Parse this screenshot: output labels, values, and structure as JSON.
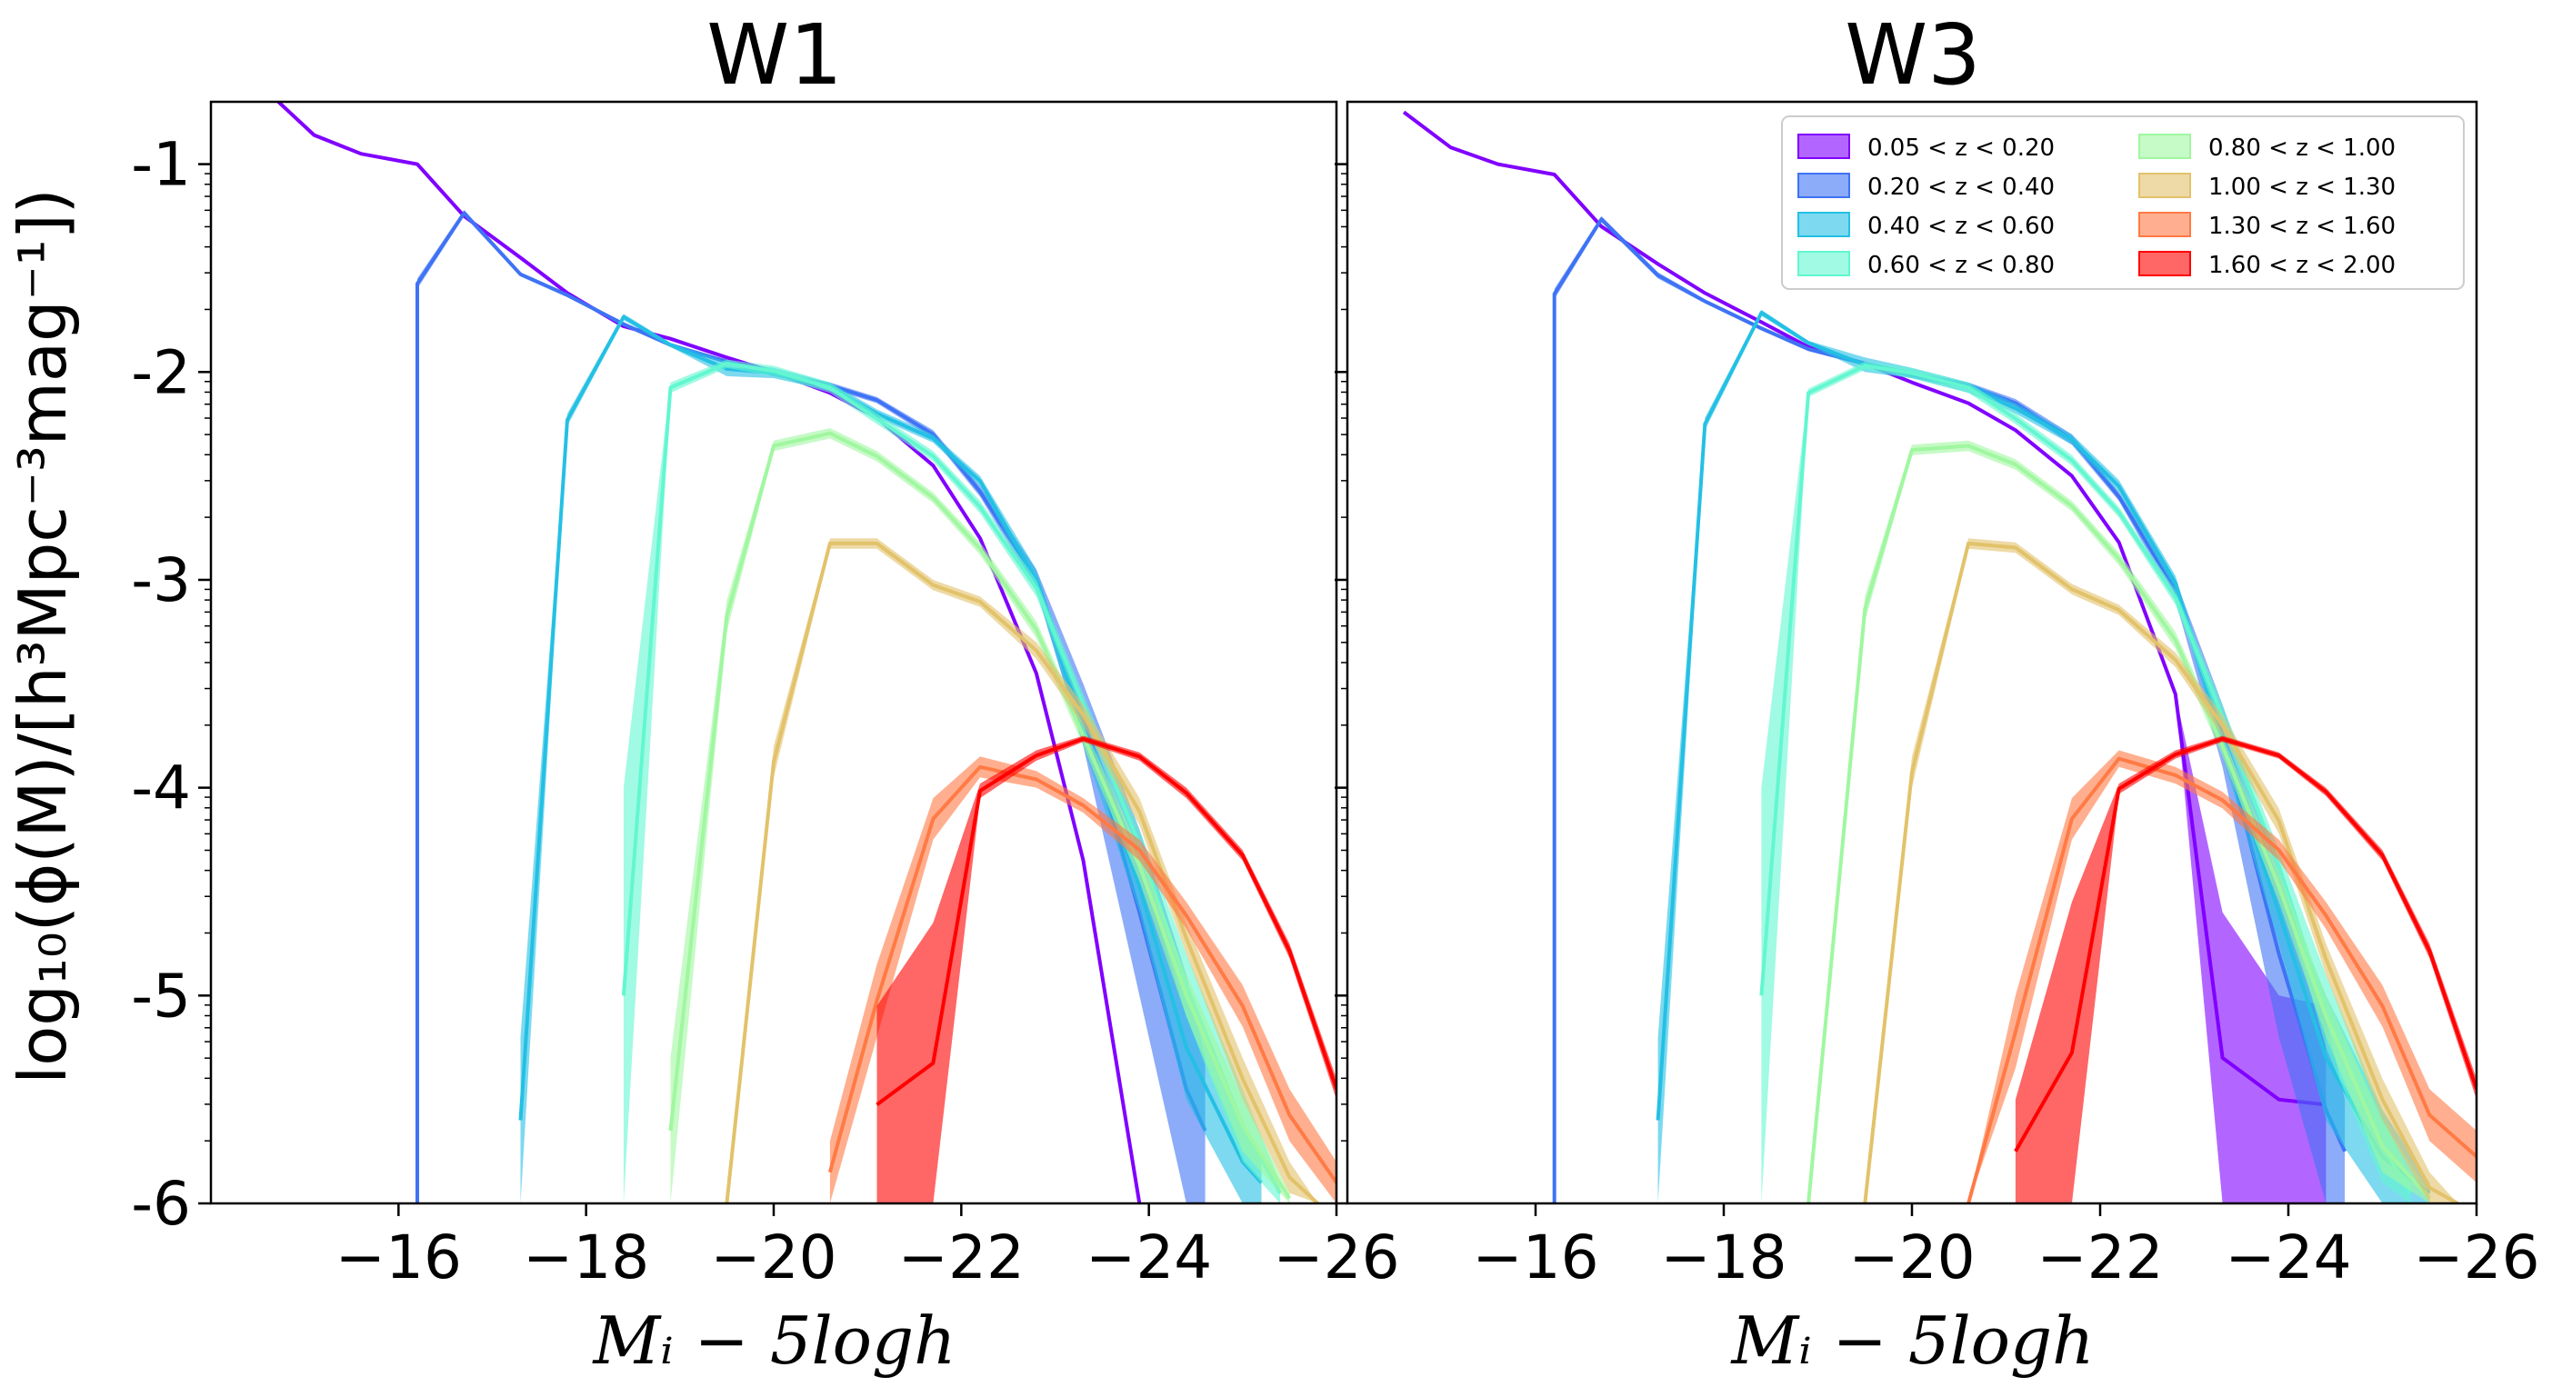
{
  "chart_data": {
    "type": "area",
    "shared": {
      "xlabel": "Mᵢ − 5logh",
      "ylabel": "log₁₀(ϕ(M)/[h³Mpc⁻³mag⁻¹])",
      "xlim": [
        -14,
        -26
      ],
      "ylim": [
        -6,
        -0.7
      ],
      "xticks": [
        -16,
        -18,
        -20,
        -22,
        -24,
        -26
      ],
      "xtick_labels": [
        "−16",
        "−18",
        "−20",
        "−22",
        "−24",
        "−26"
      ],
      "yticks": [
        -1,
        -2,
        -3,
        -4,
        -5,
        -6
      ],
      "ytick_labels": [
        "-1",
        "-2",
        "-3",
        "-4",
        "-5",
        "-6"
      ]
    },
    "legend": {
      "position": "top-right",
      "ncol": 2,
      "entries": [
        "0.05 < z < 0.20",
        "0.20 < z < 0.40",
        "0.40 < z < 0.60",
        "0.60 < z < 0.80",
        "0.80 < z < 1.00",
        "1.00 < z < 1.30",
        "1.30 < z < 1.60",
        "1.60 < z < 2.00"
      ]
    },
    "colors": [
      "#8000ff",
      "#3f73f5",
      "#24c0e4",
      "#62f7d0",
      "#a0f7a0",
      "#e2c26a",
      "#ff7a45",
      "#ff0000"
    ],
    "panels": [
      {
        "title": "W1",
        "series": [
          {
            "name": "0.05 < z < 0.20",
            "x": [
              -14.6,
              -15.1,
              -15.6,
              -16.2,
              -16.7,
              -17.3,
              -17.8,
              -18.4,
              -18.9,
              -19.5,
              -20.0,
              -20.6,
              -21.1,
              -21.7,
              -22.2,
              -22.8,
              -23.3,
              -23.9
            ],
            "upper": [
              -0.65,
              -0.86,
              -0.95,
              -1.0,
              -1.25,
              -1.45,
              -1.62,
              -1.78,
              -1.84,
              -1.93,
              -2.0,
              -2.1,
              -2.22,
              -2.45,
              -2.8,
              -3.45,
              -4.35,
              -6.0
            ],
            "lower": [
              -0.65,
              -0.86,
              -0.95,
              -1.0,
              -1.25,
              -1.45,
              -1.62,
              -1.78,
              -1.84,
              -1.93,
              -2.0,
              -2.1,
              -2.22,
              -2.45,
              -2.8,
              -3.45,
              -4.35,
              -6.0
            ]
          },
          {
            "name": "0.20 < z < 0.40",
            "x": [
              -16.2,
              -16.2,
              -16.7,
              -17.3,
              -17.8,
              -18.4,
              -18.9,
              -19.5,
              -20.0,
              -20.6,
              -21.1,
              -21.7,
              -22.2,
              -22.8,
              -23.3,
              -23.9,
              -24.4,
              -24.6
            ],
            "upper": [
              -6.0,
              -1.55,
              -1.22,
              -1.52,
              -1.62,
              -1.76,
              -1.86,
              -1.94,
              -2.0,
              -2.05,
              -2.12,
              -2.28,
              -2.55,
              -2.95,
              -3.5,
              -4.2,
              -4.9,
              -5.3
            ],
            "lower": [
              -6.0,
              -1.6,
              -1.25,
              -1.54,
              -1.64,
              -1.78,
              -1.88,
              -1.96,
              -2.02,
              -2.08,
              -2.15,
              -2.32,
              -2.6,
              -3.05,
              -3.8,
              -5.0,
              -6.0,
              -6.0
            ]
          },
          {
            "name": "0.40 < z < 0.60",
            "x": [
              -17.3,
              -17.8,
              -18.4,
              -18.9,
              -19.5,
              -20.0,
              -20.6,
              -21.1,
              -21.7,
              -22.2,
              -22.8,
              -23.3,
              -23.9,
              -24.4,
              -25.0,
              -25.2
            ],
            "upper": [
              -5.2,
              -2.2,
              -1.72,
              -1.86,
              -1.95,
              -1.98,
              -2.05,
              -2.18,
              -2.3,
              -2.5,
              -2.95,
              -3.65,
              -4.35,
              -5.0,
              -5.6,
              -5.8
            ],
            "lower": [
              -6.0,
              -2.26,
              -1.75,
              -1.88,
              -2.02,
              -2.03,
              -2.09,
              -2.22,
              -2.34,
              -2.55,
              -3.05,
              -3.8,
              -4.6,
              -5.5,
              -6.0,
              -6.0
            ]
          },
          {
            "name": "0.60 < z < 0.80",
            "x": [
              -18.4,
              -18.9,
              -19.5,
              -20.0,
              -20.6,
              -21.1,
              -21.7,
              -22.2,
              -22.8,
              -23.3,
              -23.9,
              -24.4,
              -25.0,
              -25.4
            ],
            "upper": [
              -4.0,
              -2.05,
              -1.94,
              -1.97,
              -2.05,
              -2.2,
              -2.38,
              -2.62,
              -3.0,
              -3.55,
              -4.2,
              -4.8,
              -5.45,
              -5.9
            ],
            "lower": [
              -6.0,
              -2.1,
              -1.98,
              -2.02,
              -2.1,
              -2.25,
              -2.43,
              -2.68,
              -3.08,
              -3.65,
              -4.35,
              -5.1,
              -5.8,
              -6.0
            ]
          },
          {
            "name": "0.80 < z < 1.00",
            "x": [
              -18.9,
              -19.5,
              -20.0,
              -20.6,
              -21.1,
              -21.7,
              -22.2,
              -22.8,
              -23.3,
              -23.9,
              -24.4,
              -25.0,
              -25.5
            ],
            "upper": [
              -5.3,
              -3.1,
              -2.33,
              -2.27,
              -2.38,
              -2.58,
              -2.82,
              -3.2,
              -3.7,
              -4.3,
              -4.9,
              -5.5,
              -5.95
            ],
            "lower": [
              -6.0,
              -3.25,
              -2.38,
              -2.32,
              -2.43,
              -2.63,
              -2.88,
              -3.28,
              -3.8,
              -4.45,
              -5.1,
              -5.75,
              -6.0
            ]
          },
          {
            "name": "1.00 < z < 1.30",
            "x": [
              -19.5,
              -20.0,
              -20.6,
              -21.1,
              -21.7,
              -22.2,
              -22.8,
              -23.3,
              -23.9,
              -24.4,
              -25.0,
              -25.5,
              -25.8
            ],
            "upper": [
              -6.0,
              -3.8,
              -2.8,
              -2.8,
              -3.0,
              -3.08,
              -3.3,
              -3.6,
              -4.05,
              -4.65,
              -5.3,
              -5.8,
              -6.0
            ],
            "lower": [
              -6.0,
              -3.95,
              -2.85,
              -2.85,
              -3.05,
              -3.13,
              -3.38,
              -3.7,
              -4.18,
              -4.8,
              -5.5,
              -5.95,
              -6.0
            ]
          },
          {
            "name": "1.30 < z < 1.60",
            "x": [
              -20.6,
              -21.1,
              -21.7,
              -22.2,
              -22.8,
              -23.3,
              -23.9,
              -24.4,
              -25.0,
              -25.5,
              -26.0
            ],
            "upper": [
              -5.7,
              -4.85,
              -4.05,
              -3.85,
              -3.92,
              -4.05,
              -4.25,
              -4.55,
              -4.95,
              -5.45,
              -5.8
            ],
            "lower": [
              -6.0,
              -5.2,
              -4.25,
              -3.95,
              -4.0,
              -4.12,
              -4.35,
              -4.68,
              -5.15,
              -5.7,
              -6.0
            ]
          },
          {
            "name": "1.60 < z < 2.00",
            "x": [
              -21.1,
              -21.7,
              -22.2,
              -22.8,
              -23.3,
              -23.9,
              -24.4,
              -25.0,
              -25.5,
              -26.0
            ],
            "upper": [
              -5.05,
              -4.65,
              -3.98,
              -3.82,
              -3.75,
              -3.83,
              -4.0,
              -4.3,
              -4.75,
              -5.4
            ],
            "lower": [
              -6.0,
              -6.0,
              -4.05,
              -3.87,
              -3.78,
              -3.87,
              -4.05,
              -4.35,
              -4.82,
              -5.5
            ]
          }
        ]
      },
      {
        "title": "W3",
        "series": [
          {
            "name": "0.05 < z < 0.20",
            "x": [
              -14.6,
              -15.1,
              -15.6,
              -16.2,
              -16.7,
              -17.3,
              -17.8,
              -18.4,
              -18.9,
              -19.5,
              -20.0,
              -20.6,
              -21.1,
              -21.7,
              -22.2,
              -22.8,
              -23.3,
              -23.9,
              -24.4,
              -24.4
            ],
            "upper": [
              -0.75,
              -0.92,
              -1.0,
              -1.05,
              -1.3,
              -1.48,
              -1.62,
              -1.76,
              -1.88,
              -1.96,
              -2.05,
              -2.15,
              -2.28,
              -2.5,
              -2.82,
              -3.55,
              -4.6,
              -5.0,
              -5.05,
              -5.05
            ],
            "lower": [
              -0.75,
              -0.92,
              -1.0,
              -1.05,
              -1.3,
              -1.48,
              -1.62,
              -1.76,
              -1.88,
              -1.96,
              -2.05,
              -2.15,
              -2.28,
              -2.5,
              -2.82,
              -3.55,
              -6.0,
              -6.0,
              -6.0,
              -6.0
            ]
          },
          {
            "name": "0.20 < z < 0.40",
            "x": [
              -16.2,
              -16.2,
              -16.7,
              -17.3,
              -17.8,
              -18.4,
              -18.9,
              -19.5,
              -20.0,
              -20.6,
              -21.1,
              -21.7,
              -22.2,
              -22.8,
              -23.3,
              -23.9,
              -24.4,
              -24.6
            ],
            "upper": [
              -6.0,
              -1.6,
              -1.25,
              -1.52,
              -1.65,
              -1.78,
              -1.88,
              -1.95,
              -2.0,
              -2.05,
              -2.13,
              -2.3,
              -2.58,
              -3.0,
              -3.6,
              -4.4,
              -5.1,
              -5.5
            ],
            "lower": [
              -6.0,
              -1.65,
              -1.28,
              -1.55,
              -1.67,
              -1.8,
              -1.9,
              -1.97,
              -2.03,
              -2.08,
              -2.17,
              -2.35,
              -2.62,
              -3.1,
              -3.9,
              -5.2,
              -6.0,
              -6.0
            ]
          },
          {
            "name": "0.40 < z < 0.60",
            "x": [
              -17.3,
              -17.8,
              -18.4,
              -18.9,
              -19.5,
              -20.0,
              -20.6,
              -21.1,
              -21.7,
              -22.2,
              -22.8,
              -23.3,
              -23.9,
              -24.4,
              -25.0,
              -25.5
            ],
            "upper": [
              -5.2,
              -2.22,
              -1.7,
              -1.85,
              -1.93,
              -1.98,
              -2.05,
              -2.15,
              -2.3,
              -2.52,
              -2.98,
              -3.7,
              -4.45,
              -5.0,
              -5.55,
              -5.9
            ],
            "lower": [
              -6.0,
              -2.28,
              -1.73,
              -1.87,
              -2.0,
              -2.03,
              -2.1,
              -2.2,
              -2.35,
              -2.58,
              -3.05,
              -3.85,
              -4.75,
              -5.6,
              -6.0,
              -6.0
            ]
          },
          {
            "name": "0.60 < z < 0.80",
            "x": [
              -18.4,
              -18.9,
              -19.5,
              -20.0,
              -20.6,
              -21.1,
              -21.7,
              -22.2,
              -22.8,
              -23.3,
              -23.9,
              -24.4,
              -25.0,
              -25.3
            ],
            "upper": [
              -4.0,
              -2.08,
              -1.95,
              -1.98,
              -2.05,
              -2.2,
              -2.4,
              -2.65,
              -3.05,
              -3.6,
              -4.3,
              -4.9,
              -5.55,
              -5.9
            ],
            "lower": [
              -6.0,
              -2.12,
              -1.99,
              -2.03,
              -2.1,
              -2.25,
              -2.45,
              -2.7,
              -3.12,
              -3.72,
              -4.45,
              -5.25,
              -5.9,
              -6.0
            ]
          },
          {
            "name": "0.80 < z < 1.00",
            "x": [
              -18.9,
              -19.5,
              -20.0,
              -20.6,
              -21.1,
              -21.7,
              -22.2,
              -22.8,
              -23.3,
              -23.9,
              -24.4,
              -25.0,
              -25.5
            ],
            "upper": [
              -6.0,
              -3.08,
              -2.35,
              -2.33,
              -2.42,
              -2.62,
              -2.87,
              -3.25,
              -3.75,
              -4.4,
              -5.0,
              -5.6,
              -5.95
            ],
            "lower": [
              -6.0,
              -3.2,
              -2.4,
              -2.38,
              -2.47,
              -2.67,
              -2.93,
              -3.33,
              -3.85,
              -4.55,
              -5.2,
              -5.85,
              -6.0
            ]
          },
          {
            "name": "1.00 < z < 1.30",
            "x": [
              -19.5,
              -20.0,
              -20.6,
              -21.1,
              -21.7,
              -22.2,
              -22.8,
              -23.3,
              -23.9,
              -24.4,
              -25.0,
              -25.5,
              -25.8
            ],
            "upper": [
              -6.0,
              -3.85,
              -2.8,
              -2.82,
              -3.02,
              -3.12,
              -3.35,
              -3.65,
              -4.1,
              -4.75,
              -5.4,
              -5.85,
              -6.0
            ],
            "lower": [
              -6.0,
              -4.0,
              -2.85,
              -2.87,
              -3.07,
              -3.17,
              -3.42,
              -3.75,
              -4.22,
              -4.9,
              -5.6,
              -6.0,
              -6.0
            ]
          },
          {
            "name": "1.30 < z < 1.60",
            "x": [
              -20.6,
              -21.1,
              -21.7,
              -22.2,
              -22.8,
              -23.3,
              -23.9,
              -24.4,
              -25.0,
              -25.5,
              -26.0
            ],
            "upper": [
              -6.0,
              -5.0,
              -4.05,
              -3.82,
              -3.9,
              -4.02,
              -4.25,
              -4.55,
              -4.95,
              -5.45,
              -5.65
            ],
            "lower": [
              -6.0,
              -5.35,
              -4.25,
              -3.9,
              -3.98,
              -4.1,
              -4.35,
              -4.68,
              -5.15,
              -5.7,
              -5.9
            ]
          },
          {
            "name": "1.60 < z < 2.00",
            "x": [
              -21.1,
              -21.7,
              -22.2,
              -22.8,
              -23.3,
              -23.9,
              -24.4,
              -25.0,
              -25.5,
              -26.0
            ],
            "upper": [
              -5.5,
              -4.55,
              -3.98,
              -3.82,
              -3.75,
              -3.83,
              -4.0,
              -4.3,
              -4.75,
              -5.4
            ],
            "lower": [
              -6.0,
              -6.0,
              -4.03,
              -3.86,
              -3.78,
              -3.86,
              -4.04,
              -4.35,
              -4.82,
              -5.5
            ]
          }
        ]
      }
    ]
  }
}
